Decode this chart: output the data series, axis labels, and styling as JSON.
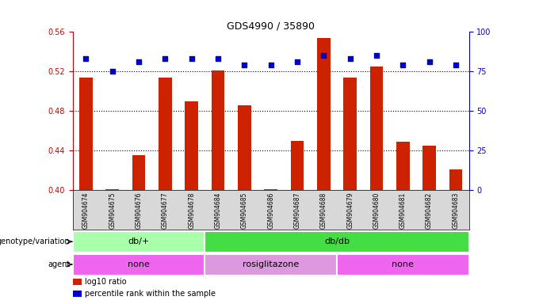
{
  "title": "GDS4990 / 35890",
  "samples": [
    "GSM904674",
    "GSM904675",
    "GSM904676",
    "GSM904677",
    "GSM904678",
    "GSM904684",
    "GSM904685",
    "GSM904686",
    "GSM904687",
    "GSM904688",
    "GSM904679",
    "GSM904680",
    "GSM904681",
    "GSM904682",
    "GSM904683"
  ],
  "log10_ratio": [
    0.514,
    0.401,
    0.435,
    0.514,
    0.49,
    0.521,
    0.486,
    0.401,
    0.45,
    0.554,
    0.514,
    0.525,
    0.449,
    0.445,
    0.421
  ],
  "percentile_right": [
    83,
    75,
    81,
    83,
    83,
    83,
    79,
    79,
    81,
    85,
    83,
    85,
    79,
    81,
    79
  ],
  "ylim_left": [
    0.4,
    0.56
  ],
  "ylim_right": [
    0,
    100
  ],
  "yticks_left": [
    0.4,
    0.44,
    0.48,
    0.52,
    0.56
  ],
  "yticks_right": [
    0,
    25,
    50,
    75,
    100
  ],
  "bar_color": "#cc2200",
  "dot_color": "#0000cc",
  "bar_bottom": 0.4,
  "genotype_groups": [
    {
      "label": "db/+",
      "start": 0,
      "end": 5,
      "color": "#aaffaa"
    },
    {
      "label": "db/db",
      "start": 5,
      "end": 15,
      "color": "#44dd44"
    }
  ],
  "agent_groups": [
    {
      "label": "none",
      "start": 0,
      "end": 5,
      "color": "#ee66ee"
    },
    {
      "label": "rosiglitazone",
      "start": 5,
      "end": 10,
      "color": "#dd99dd"
    },
    {
      "label": "none",
      "start": 10,
      "end": 15,
      "color": "#ee66ee"
    }
  ],
  "legend_items": [
    {
      "color": "#cc2200",
      "label": "log10 ratio"
    },
    {
      "color": "#0000cc",
      "label": "percentile rank within the sample"
    }
  ],
  "left_tick_color": "#cc0000",
  "right_tick_color": "#0000cc",
  "background_color": "#ffffff",
  "panel_bg": "#ffffff"
}
